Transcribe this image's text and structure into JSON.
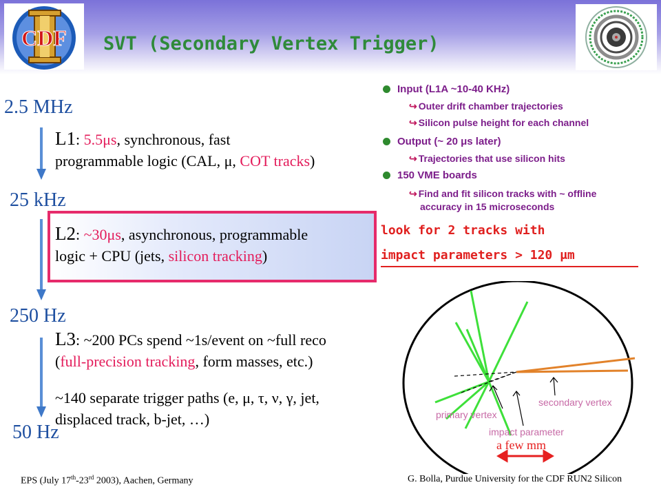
{
  "title": "SVT (Secondary Vertex Trigger)",
  "logo": {
    "text": "CDF"
  },
  "rates": {
    "r1": "2.5 MHz",
    "r2": "25 kHz",
    "r3": "250 Hz",
    "r4": "50 Hz"
  },
  "l1": {
    "name": "L1",
    "sep": ": ",
    "time": "5.5μs",
    "t1": ", synchronous, fast",
    "t2": "programmable logic (CAL, μ, ",
    "cot": "COT tracks",
    "t3": ")"
  },
  "l2": {
    "name": "L2",
    "sep": ": ",
    "time": "~30μs",
    "t1": ", asynchronous, programmable",
    "t2": "logic + CPU (jets, ",
    "si": "silicon tracking",
    "t3": ")"
  },
  "l3": {
    "name": "L3",
    "sep": ": ",
    "t1": "~200 PCs spend ~1s/event on ~full reco",
    "open": "(",
    "fp": "full-precision tracking",
    "t2": ", form masses, etc.)",
    "p1": "~140 separate trigger paths (e, μ, τ, ν, γ, jet,",
    "p2": "displaced track, b-jet, …)"
  },
  "bullets": {
    "input": "Input (L1A ~10-40 KHz)",
    "input_sub1": "Outer drift chamber trajectories",
    "input_sub2": "Silicon pulse height for each channel",
    "output": "Output (~ 20 μs later)",
    "output_sub1": "Trajectories that use silicon hits",
    "vme": "150 VME boards",
    "vme_sub1a": "Find and fit silicon tracks with ~ offline",
    "vme_sub1b": "accuracy in 15 microseconds",
    "sub_glyph": "↪"
  },
  "look": {
    "line1": "look for 2 tracks with",
    "line2": "impact parameters > 120 μm"
  },
  "diagram": {
    "primary": "primary vertex",
    "secondary": "secondary vertex",
    "impact": "impact parameter",
    "few": "a few mm"
  },
  "colors": {
    "header_top": "#7b72d9",
    "title": "#2f8a3a",
    "rate": "#1e4fa0",
    "accent_red": "#e31b5a",
    "bullet_text": "#7c1d8a",
    "bullet_dot": "#2e8a2e",
    "look": "#e0201f"
  },
  "footer": {
    "left": "EPS (July 17th-23rd 2003), Aachen, Germany",
    "right": "G. Bolla, Purdue University for the CDF RUN2 Silicon"
  }
}
